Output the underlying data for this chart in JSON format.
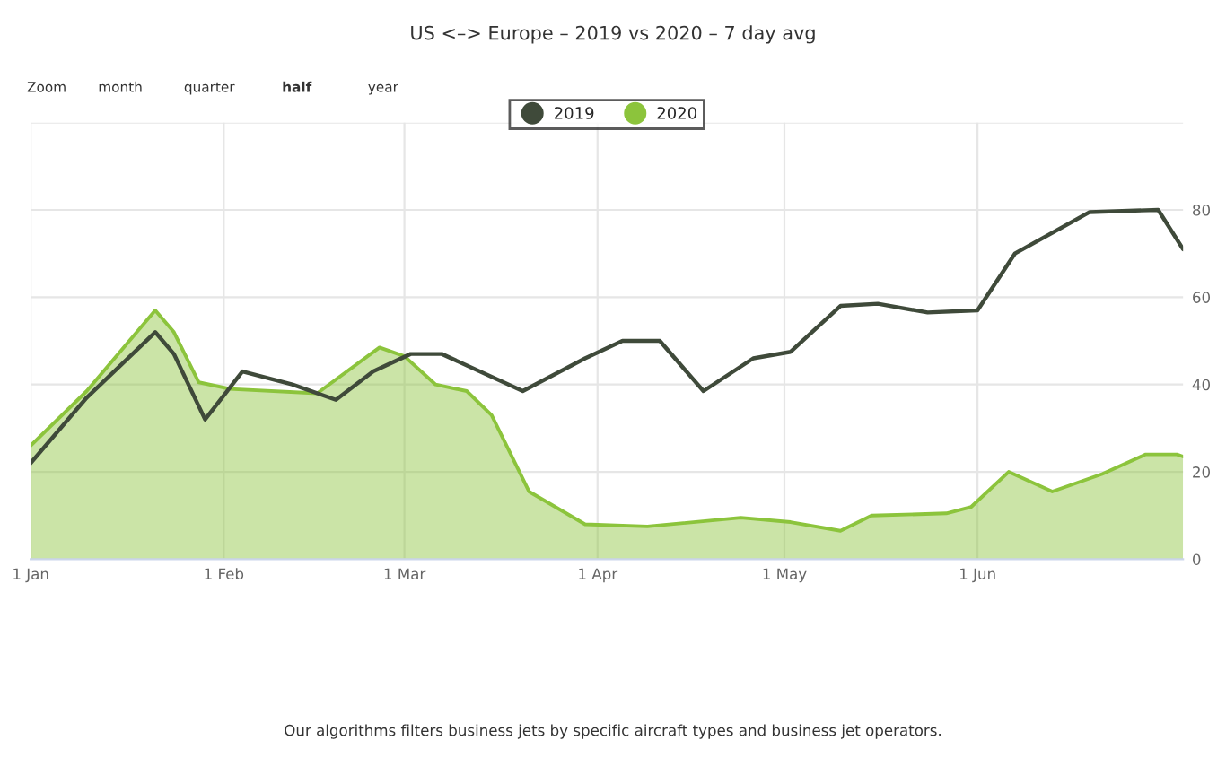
{
  "chart_data": {
    "type": "line",
    "title": "US <–> Europe – 2019 vs 2020 – 7 day avg",
    "annotations": [
      "Zoom",
      "month",
      "quarter",
      "half",
      "year",
      "Our algorithms filters business jets by specific aircraft types and business jet operators."
    ],
    "series": [
      {
        "name": "2019",
        "color": "#3f4a3a",
        "x": [
          "2020-01-01",
          "2020-01-10",
          "2020-01-21",
          "2020-01-24",
          "2020-01-29",
          "2020-02-04",
          "2020-02-12",
          "2020-02-19",
          "2020-02-25",
          "2020-03-02",
          "2020-03-07",
          "2020-03-20",
          "2020-03-30",
          "2020-04-05",
          "2020-04-11",
          "2020-04-18",
          "2020-04-26",
          "2020-05-02",
          "2020-05-10",
          "2020-05-16",
          "2020-05-24",
          "2020-06-01",
          "2020-06-07",
          "2020-06-19",
          "2020-06-30",
          "2020-07-04"
        ],
        "values": [
          22,
          37,
          52,
          47,
          32,
          43,
          40,
          36.5,
          43,
          47,
          47,
          38.5,
          46,
          50,
          50,
          38.5,
          46,
          47.5,
          58,
          58.5,
          56.5,
          57,
          70,
          79.5,
          80,
          71
        ]
      },
      {
        "name": "2020",
        "type": "area",
        "color": "#8cc43c",
        "x": [
          "2020-01-01",
          "2020-01-10",
          "2020-01-21",
          "2020-01-24",
          "2020-01-28",
          "2020-02-02",
          "2020-02-16",
          "2020-02-26",
          "2020-03-01",
          "2020-03-06",
          "2020-03-11",
          "2020-03-15",
          "2020-03-21",
          "2020-03-30",
          "2020-04-09",
          "2020-04-24",
          "2020-05-02",
          "2020-05-10",
          "2020-05-15",
          "2020-05-27",
          "2020-05-31",
          "2020-06-06",
          "2020-06-13",
          "2020-06-21",
          "2020-06-28",
          "2020-07-03",
          "2020-07-04"
        ],
        "values": [
          26,
          38.5,
          57,
          52,
          40.5,
          39,
          38,
          48.5,
          46.5,
          40,
          38.5,
          33,
          15.5,
          8,
          7.5,
          9.5,
          8.5,
          6.5,
          10,
          10.5,
          12,
          20,
          15.5,
          19.5,
          24,
          24,
          23.5
        ]
      }
    ],
    "xlim": [
      "2020-01-01",
      "2020-07-04"
    ],
    "xticks": [
      {
        "value": "2020-01-01",
        "label": "1 Jan"
      },
      {
        "value": "2020-02-01",
        "label": "1 Feb"
      },
      {
        "value": "2020-03-01",
        "label": "1 Mar"
      },
      {
        "value": "2020-04-01",
        "label": "1 Apr"
      },
      {
        "value": "2020-05-01",
        "label": "1 May"
      },
      {
        "value": "2020-06-01",
        "label": "1 Jun"
      }
    ],
    "ylim": [
      0,
      100
    ],
    "yticks": [
      0,
      20,
      40,
      60,
      80,
      {
        "value": 100,
        "label": null
      }
    ],
    "grid": true,
    "legend": "top",
    "marker": "none",
    "line_style": "solid"
  }
}
